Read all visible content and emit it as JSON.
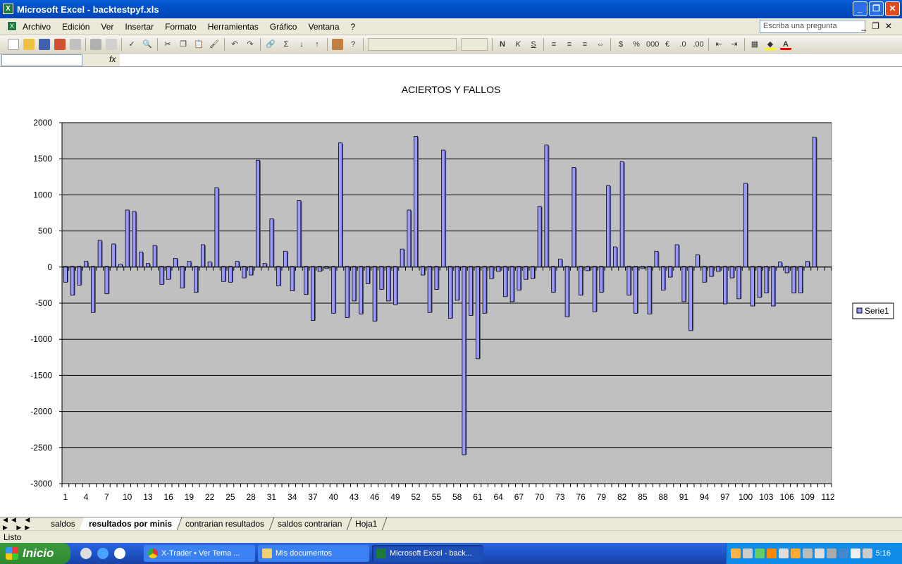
{
  "window": {
    "title": "Microsoft Excel - backtestpyf.xls",
    "minimize": "_",
    "restore": "❐",
    "close": "✕"
  },
  "menu": {
    "items": [
      "Archivo",
      "Edición",
      "Ver",
      "Insertar",
      "Formato",
      "Herramientas",
      "Gráfico",
      "Ventana",
      "?"
    ],
    "help_placeholder": "Escriba una pregunta"
  },
  "formula": {
    "fx": "fx"
  },
  "sheets": {
    "tabs": [
      "saldos",
      "resultados por minis",
      "contrarian resultados",
      "saldos contrarian",
      "Hoja1"
    ],
    "active": 1
  },
  "status": {
    "text": "Listo"
  },
  "taskbar": {
    "start": "Inicio",
    "tasks": [
      "X-Trader • Ver Tema ...",
      "Mis documentos",
      "Microsoft Excel - back..."
    ],
    "active_task": 2,
    "clock": "5:16"
  },
  "colors": {
    "bar": "#9999ff",
    "plot_bg": "#c0c0c0",
    "negative_tick": "#ff0000"
  },
  "chart_data": {
    "type": "bar",
    "title": "ACIERTOS Y FALLOS",
    "xlabel": "",
    "ylabel": "",
    "ylim": [
      -3000,
      2000
    ],
    "yticks": [
      2000,
      1500,
      1000,
      500,
      0,
      -500,
      -1000,
      -1500,
      -2000,
      -2500,
      -3000
    ],
    "grid": true,
    "legend_position": "right",
    "x_tick_labels": [
      "1",
      "4",
      "7",
      "10",
      "13",
      "16",
      "19",
      "22",
      "25",
      "28",
      "31",
      "34",
      "37",
      "40",
      "43",
      "46",
      "49",
      "52",
      "55",
      "58",
      "61",
      "64",
      "67",
      "70",
      "73",
      "76",
      "79",
      "82",
      "85",
      "88",
      "91",
      "94",
      "97",
      "100",
      "103",
      "106",
      "109",
      "112"
    ],
    "series": [
      {
        "name": "Serie1",
        "values": [
          -210,
          -390,
          -250,
          70,
          -630,
          360,
          -370,
          310,
          30,
          780,
          760,
          200,
          40,
          290,
          -240,
          -170,
          110,
          -290,
          70,
          -350,
          300,
          60,
          1090,
          -200,
          -210,
          70,
          -150,
          -110,
          1470,
          40,
          660,
          -260,
          210,
          -330,
          910,
          -380,
          -740,
          -60,
          -20,
          -640,
          1710,
          -700,
          -470,
          -650,
          -230,
          -750,
          -310,
          -470,
          -520,
          240,
          780,
          1800,
          -110,
          -630,
          -310,
          1610,
          -710,
          -460,
          -2600,
          -670,
          -1270,
          -640,
          -160,
          -60,
          -410,
          -480,
          -320,
          -170,
          -160,
          830,
          1680,
          -350,
          100,
          -690,
          1370,
          -390,
          -50,
          -620,
          -350,
          1120,
          270,
          1450,
          -390,
          -640,
          -20,
          -650,
          210,
          -320,
          -140,
          300,
          -480,
          -880,
          160,
          -210,
          -130,
          -60,
          -510,
          -150,
          -440,
          1150,
          -540,
          -420,
          -360,
          -540,
          60,
          -80,
          -360,
          -360,
          70,
          1790,
          null,
          null
        ]
      }
    ]
  }
}
